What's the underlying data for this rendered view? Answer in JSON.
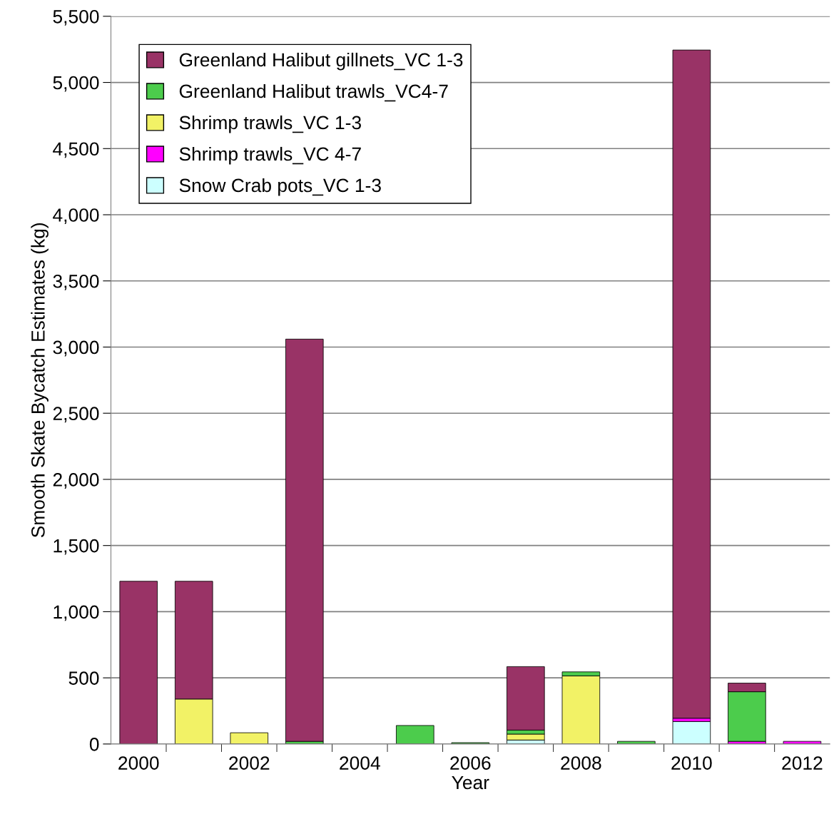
{
  "chart_data": {
    "type": "bar",
    "stacked": true,
    "xlabel": "Year",
    "ylabel": "Smooth Skate Bycatch Estimates (kg)",
    "categories": [
      "2000",
      null,
      "2002",
      null,
      "2004",
      null,
      "2006",
      null,
      "2008",
      null,
      "2010",
      null,
      "2012"
    ],
    "series": [
      {
        "name": "Snow Crab pots_VC 1-3",
        "color": "#ccffff",
        "values": [
          0,
          0,
          0,
          0,
          0,
          0,
          0,
          30,
          0,
          0,
          170,
          0,
          0
        ]
      },
      {
        "name": "Shrimp trawls_VC 4-7",
        "color": "#ff00ff",
        "values": [
          0,
          0,
          0,
          0,
          0,
          0,
          0,
          0,
          0,
          0,
          25,
          20,
          20
        ]
      },
      {
        "name": "Shrimp trawls_VC 1-3",
        "color": "#f2f266",
        "values": [
          0,
          340,
          85,
          0,
          0,
          0,
          0,
          45,
          515,
          0,
          0,
          0,
          0
        ]
      },
      {
        "name": "Greenland Halibut trawls_VC4-7",
        "color": "#4ccc4c",
        "values": [
          0,
          0,
          0,
          20,
          0,
          140,
          10,
          30,
          30,
          20,
          0,
          375,
          0
        ]
      },
      {
        "name": "Greenland Halibut gillnets_VC 1-3",
        "color": "#993366",
        "values": [
          1230,
          890,
          0,
          3040,
          0,
          0,
          0,
          480,
          0,
          0,
          5050,
          65,
          0
        ]
      }
    ],
    "ylim": [
      0,
      5500
    ],
    "yticks": [
      {
        "value": 0,
        "label": "0"
      },
      {
        "value": 500,
        "label": "500"
      },
      {
        "value": 1000,
        "label": "1,000"
      },
      {
        "value": 1500,
        "label": "1,500"
      },
      {
        "value": 2000,
        "label": "2,000"
      },
      {
        "value": 2500,
        "label": "2,500"
      },
      {
        "value": 3000,
        "label": "3,000"
      },
      {
        "value": 3500,
        "label": "3,500"
      },
      {
        "value": 4000,
        "label": "4,000"
      },
      {
        "value": 4500,
        "label": "4,500"
      },
      {
        "value": 5000,
        "label": "5,000"
      },
      {
        "value": 5500,
        "label": "5,500"
      }
    ],
    "grid": "y",
    "legend": "top left"
  }
}
